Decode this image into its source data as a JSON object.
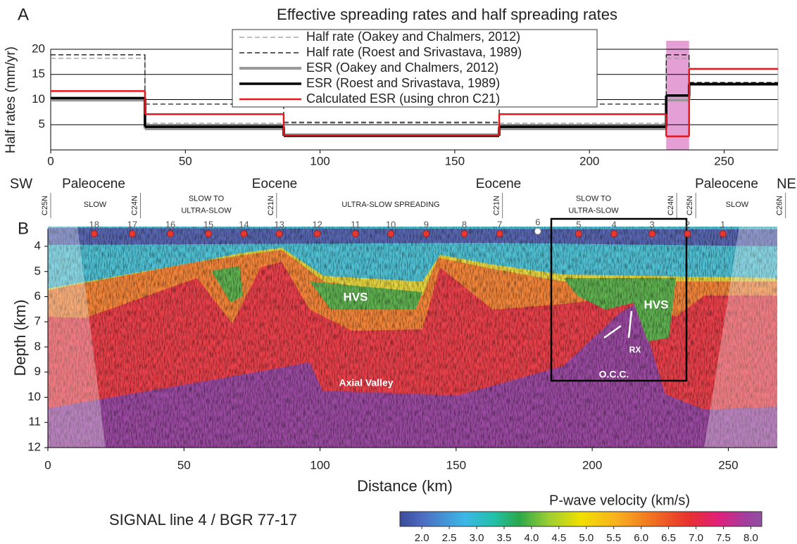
{
  "chart_data": [
    {
      "type": "step",
      "panel_label": "A",
      "title": "Effective spreading rates and half spreading rates",
      "ylabel": "Half rates (mm/yr)",
      "x": [
        0,
        35,
        86.5,
        166.5,
        228.5,
        237
      ],
      "xlim": [
        0,
        270
      ],
      "xticks": [
        0,
        50,
        100,
        150,
        200,
        250
      ],
      "ylim": [
        0,
        20
      ],
      "yticks": [
        5,
        10,
        15,
        20
      ],
      "grid": true,
      "highlight_x": [
        228.5,
        237
      ],
      "highlight_color": "#e4a0d4",
      "series": [
        {
          "name": "Half rate (Oakey and Chalmers, 2012)",
          "color": "#999999",
          "dashed": true,
          "line_width": 1.2,
          "values": [
            18.2,
            5.3,
            5.3,
            5.3,
            18.2,
            13.4
          ]
        },
        {
          "name": "Half rate (Roest and Srivastava, 1989)",
          "color": "#000000",
          "dashed": true,
          "line_width": 1.2,
          "values": [
            18.9,
            9.1,
            5.5,
            9.1,
            18.9,
            13.4
          ]
        },
        {
          "name": "ESR (Oakey and Chalmers, 2012)",
          "color": "#999999",
          "dashed": false,
          "line_width": 4,
          "values": [
            9.9,
            4.2,
            3.0,
            4.2,
            9.9,
            13.0
          ]
        },
        {
          "name": "ESR (Roest and Srivastava, 1989)",
          "color": "#000000",
          "dashed": false,
          "line_width": 3.5,
          "values": [
            10.3,
            4.6,
            2.8,
            4.6,
            10.8,
            13.1
          ]
        },
        {
          "name": "Calculated ESR (using chron C21)",
          "color": "#e8171b",
          "dashed": false,
          "line_width": 2.5,
          "values": [
            11.7,
            7.1,
            2.9,
            7.1,
            2.7,
            16.1
          ]
        }
      ]
    },
    {
      "type": "section",
      "panel_label": "B",
      "xlabel": "Distance (km)",
      "ylabel": "Depth (km)",
      "xlim": [
        0,
        268
      ],
      "xticks": [
        0,
        50,
        100,
        150,
        200,
        250
      ],
      "ylim": [
        3.3,
        12
      ],
      "yticks": [
        4,
        5,
        6,
        7,
        8,
        9,
        10,
        11,
        12
      ],
      "y_inverted": true,
      "ends": [
        "SW",
        "NE"
      ],
      "epochs": [
        "Paleocene",
        "Eocene",
        "Eocene",
        "Paleocene"
      ],
      "zones": [
        [
          "SLOW"
        ],
        [
          "SLOW TO",
          "ULTRA-SLOW"
        ],
        [
          "ULTRA-SLOW SPREADING"
        ],
        [
          "SLOW TO",
          "ULTRA-SLOW"
        ],
        [
          "SLOW"
        ]
      ],
      "chrons": {
        "labels": [
          "C25N",
          "C24N",
          "C21N",
          "C21N",
          "C24N",
          "C25N",
          "C26N"
        ],
        "x": [
          0,
          33,
          83,
          166,
          230,
          237,
          270
        ]
      },
      "stations": {
        "labels": [
          "18",
          "17",
          "16",
          "15",
          "14",
          "13",
          "12",
          "11",
          "10",
          "9",
          "8",
          "7",
          "6",
          "5",
          "4",
          "3",
          "2",
          "1"
        ],
        "x": [
          17,
          31,
          45,
          59,
          72,
          85,
          99,
          113,
          126,
          139,
          153,
          166,
          180,
          195,
          208,
          222,
          235,
          248
        ],
        "depth": [
          3.5,
          3.5,
          3.5,
          3.5,
          3.5,
          3.5,
          3.5,
          3.5,
          3.5,
          3.5,
          3.5,
          3.5,
          3.4,
          3.5,
          3.5,
          3.5,
          3.5,
          3.5
        ]
      },
      "features": [
        "HVS",
        "HVS",
        "RX",
        "Axial Valley",
        "O.C.C."
      ],
      "caption": "SIGNAL line 4 / BGR 77-17",
      "colorbar": {
        "title": "P-wave velocity (km/s)",
        "lim": [
          1.6,
          8.2
        ],
        "ticks": [
          {
            "value": 2,
            "label": "2.0"
          },
          {
            "value": 2.5,
            "label": "2.5"
          },
          {
            "value": 3,
            "label": "3.0"
          },
          {
            "value": 3.5,
            "label": "3.5"
          },
          {
            "value": 4,
            "label": "4.0"
          },
          {
            "value": 4.5,
            "label": "4.5"
          },
          {
            "value": 5,
            "label": "5.0"
          },
          {
            "value": 5.5,
            "label": "5.5"
          },
          {
            "value": 6,
            "label": "6.0"
          },
          {
            "value": 6.5,
            "label": "6.5"
          },
          {
            "value": 7,
            "label": "7.0"
          },
          {
            "value": 7.5,
            "label": "7.5"
          },
          {
            "value": 8,
            "label": "8.0"
          }
        ]
      }
    }
  ]
}
